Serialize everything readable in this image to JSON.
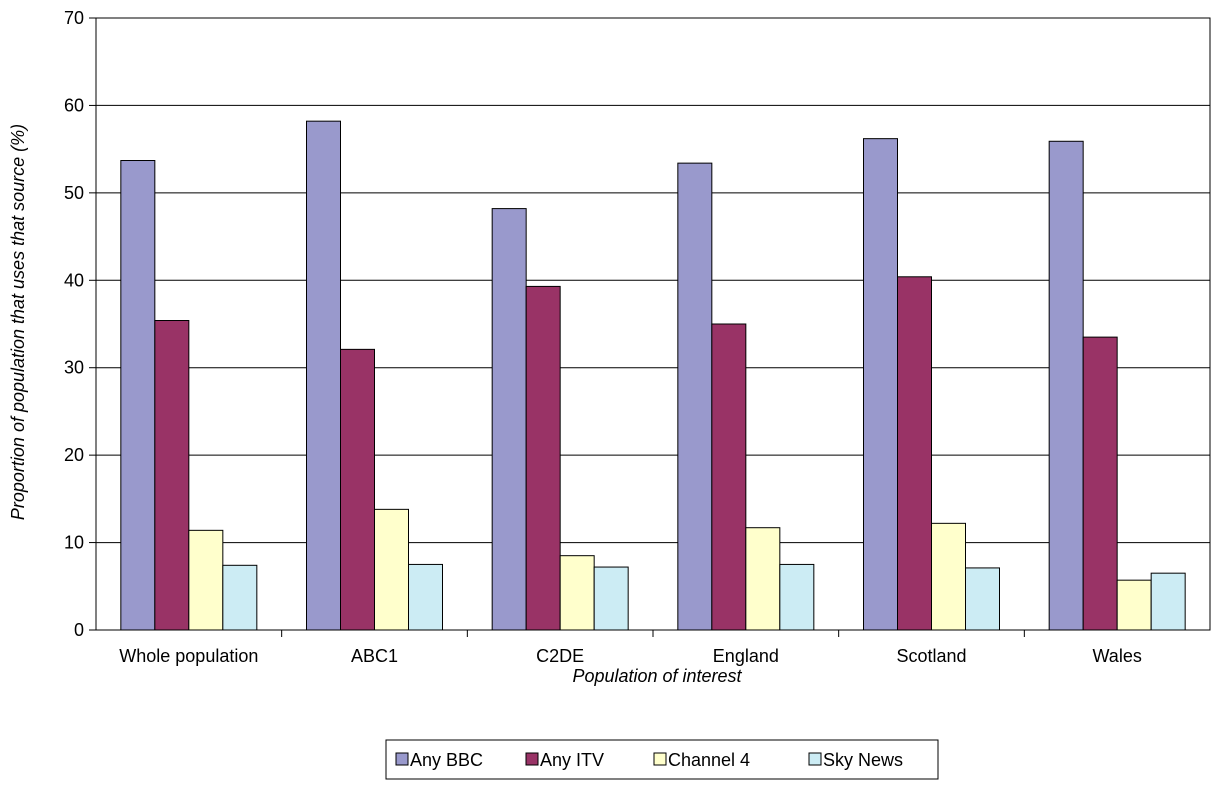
{
  "chart_data": {
    "type": "bar",
    "title": "",
    "xlabel": "Population of interest",
    "ylabel": "Proportion of population that uses that source (%)",
    "ylim": [
      0,
      70
    ],
    "yticks": [
      0,
      10,
      20,
      30,
      40,
      50,
      60,
      70
    ],
    "grid": true,
    "legend_position": "bottom",
    "categories": [
      "Whole population",
      "ABC1",
      "C2DE",
      "England",
      "Scotland",
      "Wales"
    ],
    "series": [
      {
        "name": "Any BBC",
        "color": "#9999cc",
        "values": [
          53.7,
          58.2,
          48.2,
          53.4,
          56.2,
          55.9
        ]
      },
      {
        "name": "Any ITV",
        "color": "#993366",
        "values": [
          35.4,
          32.1,
          39.3,
          35.0,
          40.4,
          33.5
        ]
      },
      {
        "name": "Channel 4",
        "color": "#ffffcc",
        "values": [
          11.4,
          13.8,
          8.5,
          11.7,
          12.2,
          5.7
        ]
      },
      {
        "name": "Sky News",
        "color": "#ccecf4",
        "values": [
          7.4,
          7.5,
          7.2,
          7.5,
          7.1,
          6.5
        ]
      }
    ]
  }
}
